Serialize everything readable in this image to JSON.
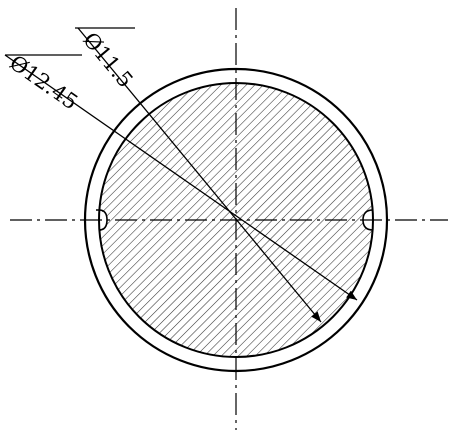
{
  "drawing": {
    "dimensions": [
      {
        "label": "Ø11.5"
      },
      {
        "label": "Ø12.45"
      }
    ]
  }
}
